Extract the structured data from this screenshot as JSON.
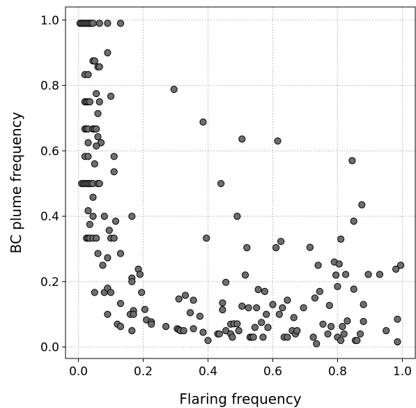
{
  "chart_data": {
    "type": "scatter",
    "title": "",
    "xlabel": "Flaring frequency",
    "ylabel": "BC plume frequency",
    "xlim": [
      -0.04,
      1.04
    ],
    "ylim": [
      -0.035,
      1.04
    ],
    "grid": true,
    "legend": "none",
    "colors": {
      "marker_fill": "#6e6e6e",
      "marker_edge": "#000000",
      "grid": "#b0b0b0"
    },
    "xticks": [
      0.0,
      0.2,
      0.4,
      0.6,
      0.8,
      1.0
    ],
    "xtick_labels": [
      "0.0",
      "0.2",
      "0.4",
      "0.6",
      "0.8",
      "1.0"
    ],
    "yticks": [
      0.0,
      0.2,
      0.4,
      0.6,
      0.8,
      1.0
    ],
    "ytick_labels": [
      "0.0",
      "0.2",
      "0.4",
      "0.6",
      "0.8",
      "1.0"
    ],
    "points": [
      [
        0.005,
        0.99
      ],
      [
        0.01,
        0.99
      ],
      [
        0.015,
        0.99
      ],
      [
        0.02,
        0.99
      ],
      [
        0.025,
        0.99
      ],
      [
        0.03,
        0.99
      ],
      [
        0.035,
        0.99
      ],
      [
        0.04,
        0.99
      ],
      [
        0.045,
        0.99
      ],
      [
        0.065,
        0.99
      ],
      [
        0.09,
        0.99
      ],
      [
        0.13,
        0.99
      ],
      [
        0.09,
        0.9
      ],
      [
        0.045,
        0.875
      ],
      [
        0.05,
        0.875
      ],
      [
        0.06,
        0.857
      ],
      [
        0.065,
        0.857
      ],
      [
        0.02,
        0.833
      ],
      [
        0.03,
        0.833
      ],
      [
        0.055,
        0.775
      ],
      [
        0.1,
        0.767
      ],
      [
        0.02,
        0.75
      ],
      [
        0.025,
        0.75
      ],
      [
        0.03,
        0.75
      ],
      [
        0.035,
        0.75
      ],
      [
        0.065,
        0.75
      ],
      [
        0.06,
        0.714
      ],
      [
        0.02,
        0.667
      ],
      [
        0.025,
        0.667
      ],
      [
        0.03,
        0.667
      ],
      [
        0.045,
        0.667
      ],
      [
        0.05,
        0.667
      ],
      [
        0.055,
        0.667
      ],
      [
        0.06,
        0.643
      ],
      [
        0.03,
        0.625
      ],
      [
        0.07,
        0.625
      ],
      [
        0.055,
        0.615
      ],
      [
        0.02,
        0.583
      ],
      [
        0.03,
        0.583
      ],
      [
        0.11,
        0.583
      ],
      [
        0.05,
        0.56
      ],
      [
        0.11,
        0.536
      ],
      [
        0.01,
        0.5
      ],
      [
        0.015,
        0.5
      ],
      [
        0.02,
        0.5
      ],
      [
        0.025,
        0.5
      ],
      [
        0.03,
        0.5
      ],
      [
        0.035,
        0.5
      ],
      [
        0.04,
        0.5
      ],
      [
        0.045,
        0.5
      ],
      [
        0.06,
        0.5
      ],
      [
        0.065,
        0.5
      ],
      [
        0.045,
        0.458
      ],
      [
        0.03,
        0.417
      ],
      [
        0.045,
        0.4
      ],
      [
        0.08,
        0.4
      ],
      [
        0.115,
        0.385
      ],
      [
        0.035,
        0.375
      ],
      [
        0.095,
        0.357
      ],
      [
        0.025,
        0.333
      ],
      [
        0.03,
        0.333
      ],
      [
        0.035,
        0.333
      ],
      [
        0.045,
        0.333
      ],
      [
        0.055,
        0.333
      ],
      [
        0.1,
        0.333
      ],
      [
        0.11,
        0.333
      ],
      [
        0.06,
        0.286
      ],
      [
        0.13,
        0.286
      ],
      [
        0.09,
        0.273
      ],
      [
        0.075,
        0.25
      ],
      [
        0.05,
        0.167
      ],
      [
        0.08,
        0.167
      ],
      [
        0.09,
        0.18
      ],
      [
        0.1,
        0.167
      ],
      [
        0.13,
        0.133
      ],
      [
        0.09,
        0.1
      ],
      [
        0.12,
        0.07
      ],
      [
        0.13,
        0.063
      ],
      [
        0.165,
        0.4
      ],
      [
        0.185,
        0.238
      ],
      [
        0.19,
        0.222
      ],
      [
        0.165,
        0.211
      ],
      [
        0.165,
        0.2
      ],
      [
        0.195,
        0.167
      ],
      [
        0.17,
        0.111
      ],
      [
        0.16,
        0.1
      ],
      [
        0.17,
        0.1
      ],
      [
        0.205,
        0.115
      ],
      [
        0.21,
        0.083
      ],
      [
        0.225,
        0.077
      ],
      [
        0.225,
        0.07
      ],
      [
        0.165,
        0.05
      ],
      [
        0.27,
        0.063
      ],
      [
        0.295,
        0.788
      ],
      [
        0.305,
        0.056
      ],
      [
        0.31,
        0.053
      ],
      [
        0.315,
        0.05
      ],
      [
        0.325,
        0.05
      ],
      [
        0.31,
        0.147
      ],
      [
        0.33,
        0.158
      ],
      [
        0.345,
        0.105
      ],
      [
        0.355,
        0.143
      ],
      [
        0.355,
        0.056
      ],
      [
        0.375,
        0.094
      ],
      [
        0.385,
        0.688
      ],
      [
        0.385,
        0.045
      ],
      [
        0.395,
        0.333
      ],
      [
        0.4,
        0.02
      ],
      [
        0.43,
        0.04
      ],
      [
        0.435,
        0.04
      ],
      [
        0.44,
        0.5
      ],
      [
        0.445,
        0.135
      ],
      [
        0.445,
        0.114
      ],
      [
        0.455,
        0.198
      ],
      [
        0.455,
        0.05
      ],
      [
        0.47,
        0.07
      ],
      [
        0.47,
        0.04
      ],
      [
        0.475,
        0.03
      ],
      [
        0.48,
        0.071
      ],
      [
        0.49,
        0.4
      ],
      [
        0.49,
        0.071
      ],
      [
        0.495,
        0.05
      ],
      [
        0.505,
        0.636
      ],
      [
        0.505,
        0.125
      ],
      [
        0.515,
        0.22
      ],
      [
        0.52,
        0.304
      ],
      [
        0.525,
        0.12
      ],
      [
        0.53,
        0.03
      ],
      [
        0.535,
        0.03
      ],
      [
        0.54,
        0.03
      ],
      [
        0.545,
        0.06
      ],
      [
        0.55,
        0.12
      ],
      [
        0.555,
        0.176
      ],
      [
        0.565,
        0.075
      ],
      [
        0.57,
        0.03
      ],
      [
        0.575,
        0.17
      ],
      [
        0.58,
        0.1
      ],
      [
        0.585,
        0.06
      ],
      [
        0.6,
        0.13
      ],
      [
        0.61,
        0.304
      ],
      [
        0.615,
        0.63
      ],
      [
        0.62,
        0.1
      ],
      [
        0.625,
        0.323
      ],
      [
        0.63,
        0.12
      ],
      [
        0.635,
        0.03
      ],
      [
        0.645,
        0.03
      ],
      [
        0.645,
        0.143
      ],
      [
        0.66,
        0.05
      ],
      [
        0.665,
        0.09
      ],
      [
        0.67,
        0.04
      ],
      [
        0.675,
        0.05
      ],
      [
        0.695,
        0.12
      ],
      [
        0.715,
        0.305
      ],
      [
        0.725,
        0.03
      ],
      [
        0.73,
        0.15
      ],
      [
        0.735,
        0.01
      ],
      [
        0.74,
        0.25
      ],
      [
        0.745,
        0.17
      ],
      [
        0.755,
        0.07
      ],
      [
        0.77,
        0.04
      ],
      [
        0.775,
        0.127
      ],
      [
        0.78,
        0.063
      ],
      [
        0.79,
        0.26
      ],
      [
        0.795,
        0.22
      ],
      [
        0.8,
        0.185
      ],
      [
        0.8,
        0.03
      ],
      [
        0.805,
        0.254
      ],
      [
        0.81,
        0.33
      ],
      [
        0.81,
        0.02
      ],
      [
        0.815,
        0.063
      ],
      [
        0.82,
        0.04
      ],
      [
        0.825,
        0.222
      ],
      [
        0.83,
        0.08
      ],
      [
        0.845,
        0.57
      ],
      [
        0.85,
        0.385
      ],
      [
        0.85,
        0.177
      ],
      [
        0.855,
        0.02
      ],
      [
        0.86,
        0.02
      ],
      [
        0.87,
        0.04
      ],
      [
        0.875,
        0.435
      ],
      [
        0.88,
        0.13
      ],
      [
        0.88,
        0.078
      ],
      [
        0.895,
        0.222
      ],
      [
        0.93,
        0.222
      ],
      [
        0.95,
        0.05
      ],
      [
        0.98,
        0.238
      ],
      [
        0.985,
        0.085
      ],
      [
        0.985,
        0.016
      ],
      [
        0.995,
        0.25
      ]
    ]
  }
}
